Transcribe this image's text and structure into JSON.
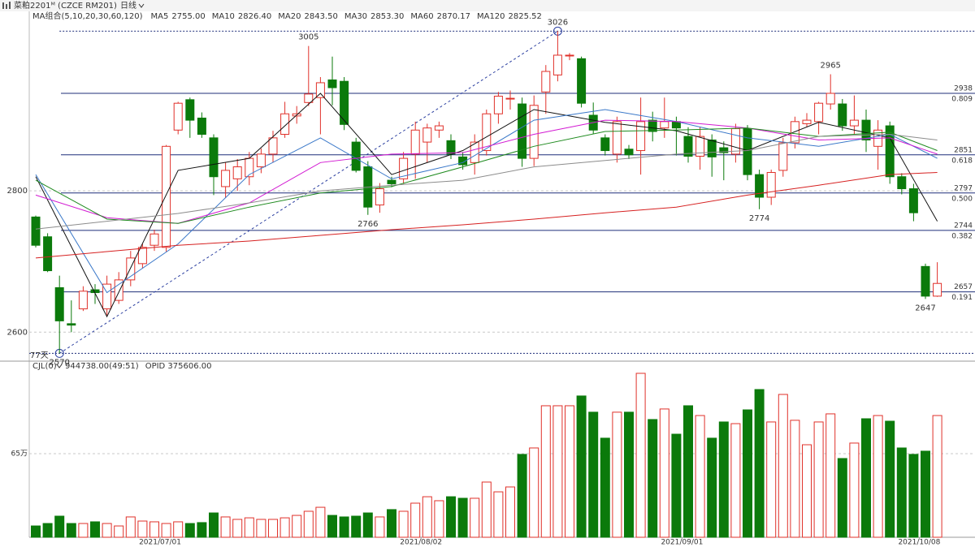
{
  "header": {
    "title": "菜粕2201ᴹ (CZCE RM201)",
    "period": "日线"
  },
  "chart_data": [
    {
      "type": "candlestick",
      "legend_title": "MA组合(5,10,20,30,60,120)",
      "range_label": "77天",
      "up_color": "#e0312a",
      "down_color": "#0b7a0b",
      "categories": [
        null,
        null,
        null,
        null,
        null,
        null,
        null,
        null,
        null,
        null,
        "2021/07/01",
        null,
        null,
        null,
        null,
        null,
        null,
        null,
        null,
        null,
        null,
        null,
        null,
        null,
        null,
        null,
        null,
        null,
        null,
        null,
        null,
        null,
        "2021/08/02",
        null,
        null,
        null,
        null,
        null,
        null,
        null,
        null,
        null,
        null,
        null,
        null,
        null,
        null,
        null,
        null,
        null,
        null,
        null,
        null,
        null,
        "2021/09/01",
        null,
        null,
        null,
        null,
        null,
        null,
        null,
        null,
        null,
        null,
        null,
        null,
        null,
        null,
        null,
        null,
        null,
        null,
        null,
        "2021/10/08",
        null,
        null
      ],
      "open": [
        2763,
        2735,
        2663,
        2612,
        2633,
        2660,
        2633,
        2645,
        2674,
        2697,
        2723,
        2720,
        2886,
        2929,
        2903,
        2875,
        2806,
        2817,
        2820,
        2834,
        2852,
        2880,
        2906,
        2925,
        2932,
        2957,
        2955,
        2869,
        2834,
        2780,
        2815,
        2817,
        2852,
        2869,
        2886,
        2871,
        2848,
        2840,
        2857,
        2909,
        2930,
        2923,
        2846,
        2940,
        2964,
        2992,
        2987,
        2907,
        2875,
        2852,
        2859,
        2857,
        2900,
        2889,
        2898,
        2877,
        2849,
        2872,
        2861,
        2852,
        2888,
        2823,
        2791,
        2829,
        2868,
        2895,
        2898,
        2923,
        2923,
        2892,
        2900,
        2863,
        2892,
        2820,
        2803,
        2693,
        2651
      ],
      "high": [
        2765,
        2740,
        2680,
        2645,
        2665,
        2668,
        2680,
        2685,
        2715,
        2725,
        2745,
        2865,
        2926,
        2932,
        2911,
        2880,
        2840,
        2845,
        2855,
        2860,
        2885,
        2926,
        2920,
        3005,
        2961,
        2990,
        2961,
        2875,
        2842,
        2811,
        2820,
        2855,
        2898,
        2895,
        2898,
        2880,
        2855,
        2880,
        2915,
        2940,
        2942,
        2932,
        2935,
        2978,
        3026,
        2995,
        2990,
        2925,
        2880,
        2905,
        2865,
        2932,
        2912,
        2932,
        2905,
        2890,
        2890,
        2880,
        2870,
        2895,
        2893,
        2830,
        2830,
        2875,
        2905,
        2910,
        2926,
        2965,
        2930,
        2935,
        2915,
        2900,
        2898,
        2825,
        2810,
        2697,
        2699
      ],
      "low": [
        2720,
        2685,
        2570,
        2600,
        2630,
        2640,
        2624,
        2640,
        2665,
        2690,
        2715,
        2714,
        2880,
        2875,
        2875,
        2794,
        2790,
        2800,
        2808,
        2825,
        2840,
        2875,
        2895,
        2920,
        2880,
        2921,
        2886,
        2826,
        2766,
        2769,
        2805,
        2810,
        2817,
        2840,
        2875,
        2845,
        2830,
        2823,
        2850,
        2895,
        2915,
        2834,
        2835,
        2909,
        2955,
        2985,
        2918,
        2880,
        2850,
        2840,
        2845,
        2823,
        2870,
        2875,
        2850,
        2840,
        2830,
        2820,
        2815,
        2840,
        2815,
        2774,
        2780,
        2820,
        2860,
        2890,
        2880,
        2915,
        2885,
        2880,
        2855,
        2830,
        2810,
        2795,
        2757,
        2647,
        2650
      ],
      "close": [
        2723,
        2687,
        2616,
        2610,
        2658,
        2656,
        2668,
        2674,
        2705,
        2720,
        2739,
        2863,
        2924,
        2900,
        2880,
        2820,
        2829,
        2834,
        2846,
        2852,
        2875,
        2909,
        2909,
        2937,
        2953,
        2946,
        2894,
        2829,
        2777,
        2803,
        2810,
        2846,
        2886,
        2889,
        2892,
        2852,
        2837,
        2869,
        2909,
        2934,
        2931,
        2846,
        2921,
        2969,
        2992,
        2992,
        2924,
        2886,
        2857,
        2898,
        2851,
        2898,
        2884,
        2898,
        2889,
        2849,
        2877,
        2848,
        2854,
        2888,
        2823,
        2791,
        2826,
        2868,
        2898,
        2900,
        2924,
        2938,
        2892,
        2900,
        2872,
        2886,
        2820,
        2803,
        2769,
        2651,
        2669
      ],
      "ylim": [
        2559,
        3054
      ],
      "yticks": [
        2800,
        2600
      ],
      "grid": true,
      "ma_x": [
        0,
        6,
        12,
        18,
        24,
        30,
        36,
        42,
        48,
        54,
        60,
        66,
        72,
        76
      ],
      "ma": [
        {
          "name": "MA5",
          "legend_value": "2755.00",
          "color": "#111111",
          "values": [
            2820,
            2622,
            2829,
            2846,
            2938,
            2823,
            2857,
            2915,
            2897,
            2885,
            2857,
            2897,
            2875,
            2757
          ]
        },
        {
          "name": "MA10",
          "legend_value": "2826.40",
          "color": "#3a78c9",
          "values": [
            2823,
            2656,
            2725,
            2823,
            2875,
            2817,
            2840,
            2900,
            2915,
            2898,
            2875,
            2863,
            2880,
            2846
          ]
        },
        {
          "name": "MA20",
          "legend_value": "2843.50",
          "color": "#d21ad2",
          "values": [
            2794,
            2762,
            2754,
            2783,
            2840,
            2852,
            2854,
            2880,
            2900,
            2898,
            2889,
            2872,
            2875,
            2852
          ]
        },
        {
          "name": "MA30",
          "legend_value": "2853.30",
          "color": "#1e8a1e",
          "values": [
            2815,
            2760,
            2754,
            2777,
            2797,
            2806,
            2834,
            2863,
            2884,
            2886,
            2889,
            2877,
            2883,
            2857
          ]
        },
        {
          "name": "MA60",
          "legend_value": "2870.17",
          "color": "#8c8c8c",
          "values": [
            2746,
            2757,
            2768,
            2783,
            2800,
            2808,
            2815,
            2834,
            2843,
            2852,
            2857,
            2877,
            2880,
            2872
          ]
        },
        {
          "name": "MA120",
          "legend_value": "2825.52",
          "color": "#d62020",
          "values": [
            2705,
            2714,
            2723,
            2729,
            2737,
            2745,
            2752,
            2760,
            2769,
            2777,
            2794,
            2808,
            2823,
            2826
          ]
        }
      ],
      "fib_color": "#1f2f7a",
      "fib": [
        {
          "price": 2938,
          "ratio": "0.809"
        },
        {
          "price": 2851,
          "ratio": "0.618"
        },
        {
          "price": 2797,
          "ratio": "0.500"
        },
        {
          "price": 2744,
          "ratio": "0.382"
        },
        {
          "price": 2657,
          "ratio": "0.191"
        }
      ],
      "extremes": [
        {
          "index": 23,
          "value": 3005
        },
        {
          "index": 44,
          "value": 3026
        },
        {
          "index": 67,
          "value": 2965
        },
        {
          "index": 2,
          "value": 2570
        },
        {
          "index": 28,
          "value": 2766
        },
        {
          "index": 61,
          "value": 2774
        },
        {
          "index": 75,
          "value": 2647
        }
      ]
    },
    {
      "type": "bar",
      "name": "CJL(0)",
      "readout": "944738.00(49:51)",
      "opid": "OPID 375606.00",
      "values": [
        8.8,
        10.7,
        16.4,
        10.7,
        10.7,
        12,
        10.7,
        8.8,
        15.8,
        12.6,
        12,
        10.7,
        12,
        10.7,
        11.4,
        18.9,
        15.8,
        13.9,
        15.1,
        13.9,
        13.9,
        15.1,
        17,
        20.2,
        23.3,
        17,
        15.8,
        16.4,
        18.9,
        15.8,
        21.5,
        20.2,
        26.5,
        31.5,
        28.4,
        31.5,
        30.3,
        30.3,
        42.9,
        35.3,
        39.1,
        64.4,
        69.4,
        102.2,
        102.2,
        102.2,
        109.8,
        97.2,
        77,
        97.2,
        97.2,
        127.4,
        91.5,
        99.7,
        80.1,
        102.2,
        94.6,
        77,
        89.6,
        88.3,
        99,
        114.8,
        89.6,
        111,
        90.9,
        71.9,
        89.6,
        95.9,
        61.2,
        73.2,
        92.1,
        94.6,
        90.2,
        69.4,
        64.4,
        66.9,
        94.6
      ],
      "ylim": [
        0,
        135.6
      ],
      "yticks": [
        {
          "value": 65,
          "label": "65万"
        }
      ],
      "grid": true
    }
  ]
}
